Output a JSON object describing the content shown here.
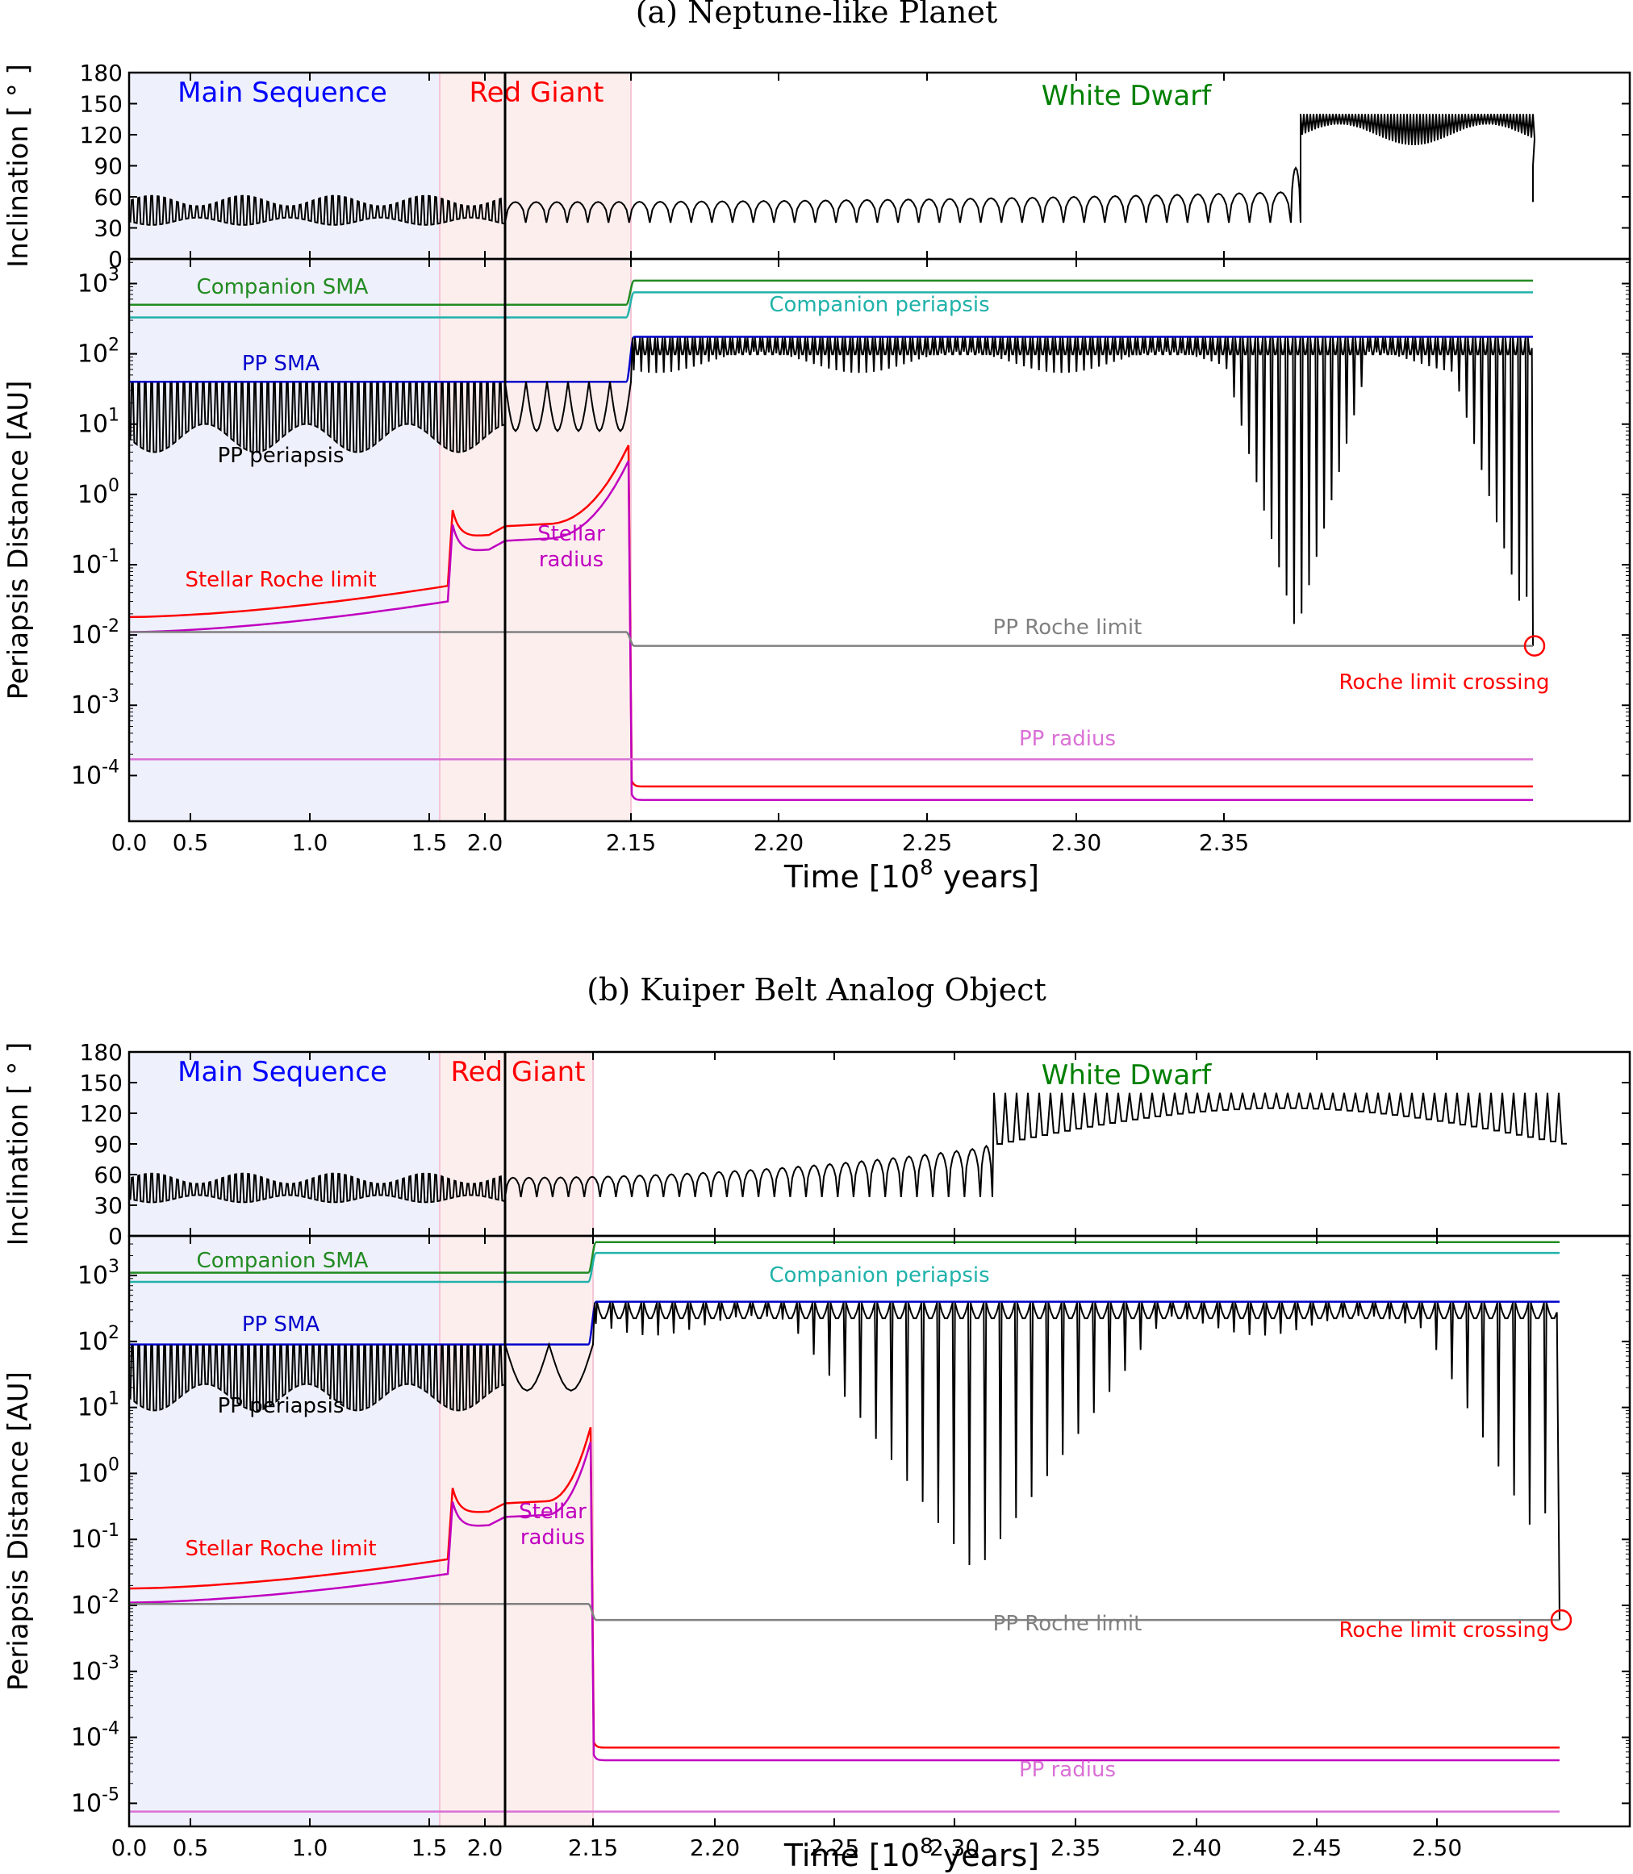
{
  "chart_data": [
    {
      "type": "line",
      "title": "(a) Neptune-like Planet",
      "xlabel_main": "Time [",
      "xlabel_base": "10",
      "xlabel_exp": "8",
      "xlabel_tail": "  years]",
      "x_ticks": [
        "0.0",
        "0.5",
        "1.0",
        "1.5",
        "2.0",
        "2.15",
        "2.20",
        "2.25",
        "2.30",
        "2.35"
      ],
      "phases": {
        "main_sequence": "Main Sequence",
        "red_giant": "Red Giant",
        "white_dwarf": "White Dwarf"
      },
      "colors": {
        "main_sequence": "#0000ff",
        "red_giant": "#ff0000",
        "white_dwarf": "#008000",
        "ms_shade": "#eef0fb",
        "rg_shade": "#fdeeee"
      },
      "inclination_panel": {
        "ylabel": "Inclination [ ° ]",
        "ylim": [
          0,
          180
        ],
        "y_ticks": [
          "0",
          "30",
          "60",
          "90",
          "120",
          "150",
          "180"
        ]
      },
      "distance_panel": {
        "ylabel": "Periapsis Distance [AU]",
        "yscale": "log",
        "ylim_log10": [
          -4.65,
          3.35
        ],
        "y_tick_exponents": [
          "3",
          "2",
          "1",
          "0",
          "-1",
          "-2",
          "-3",
          "-4"
        ]
      },
      "series_labels": [
        {
          "text": "Companion SMA",
          "color": "#228b22"
        },
        {
          "text": "Companion periapsis",
          "color": "#20b2aa"
        },
        {
          "text": "PP SMA",
          "color": "#0000cc"
        },
        {
          "text": "PP periapsis",
          "color": "#000000"
        },
        {
          "text": "Stellar Roche limit",
          "color": "#ff0000"
        },
        {
          "text": "Stellar radius",
          "color": "#c000c0"
        },
        {
          "text": "PP Roche limit",
          "color": "#808080"
        },
        {
          "text": "Roche limit crossing",
          "color": "#ff0000"
        },
        {
          "text": "PP radius",
          "color": "#da70d6"
        }
      ],
      "series_values": {
        "companion_sma_au": {
          "before": 500,
          "after": 1100
        },
        "companion_periapsis_au": {
          "before": 330,
          "after": 750
        },
        "pp_sma_au": {
          "before": 40,
          "after": 175
        },
        "pp_roche_limit_au": {
          "before": 0.011,
          "after": 0.007
        },
        "pp_radius_au": 0.00017,
        "stellar_roche_limit_au": {
          "main_sequence_start": 0.018,
          "main_sequence_end": 0.05,
          "rg_peak": 0.6,
          "rg_end": 5,
          "white_dwarf": 7e-05
        },
        "stellar_radius_au": {
          "main_sequence_start": 0.011,
          "main_sequence_end": 0.03,
          "rg_end": 3,
          "white_dwarf": 4.5e-05
        },
        "pp_periapsis_min_au": 0.02
      }
    },
    {
      "type": "line",
      "title": "(b) Kuiper Belt Analog Object",
      "xlabel_main": "Time [",
      "xlabel_base": "10",
      "xlabel_exp": "8",
      "xlabel_tail": "  years]",
      "x_ticks": [
        "0.0",
        "0.5",
        "1.0",
        "1.5",
        "2.0",
        "2.15",
        "2.20",
        "2.25",
        "2.30",
        "2.35",
        "2.40",
        "2.45",
        "2.50"
      ],
      "phases": {
        "main_sequence": "Main Sequence",
        "red_giant": "Red Giant",
        "white_dwarf": "White Dwarf"
      },
      "colors": {
        "main_sequence": "#0000ff",
        "red_giant": "#ff0000",
        "white_dwarf": "#008000",
        "ms_shade": "#eef0fb",
        "rg_shade": "#fdeeee"
      },
      "inclination_panel": {
        "ylabel": "Inclination [ ° ]",
        "ylim": [
          0,
          180
        ],
        "y_ticks": [
          "0",
          "30",
          "60",
          "90",
          "120",
          "150",
          "180"
        ]
      },
      "distance_panel": {
        "ylabel": "Periapsis Distance [AU]",
        "yscale": "log",
        "ylim_log10": [
          -5.35,
          3.6
        ],
        "y_tick_exponents": [
          "3",
          "2",
          "1",
          "0",
          "-1",
          "-2",
          "-3",
          "-4",
          "-5"
        ]
      },
      "series_labels": [
        {
          "text": "Companion SMA",
          "color": "#228b22"
        },
        {
          "text": "Companion periapsis",
          "color": "#20b2aa"
        },
        {
          "text": "PP SMA",
          "color": "#0000cc"
        },
        {
          "text": "PP periapsis",
          "color": "#000000"
        },
        {
          "text": "Stellar Roche limit",
          "color": "#ff0000"
        },
        {
          "text": "Stellar radius",
          "color": "#c000c0"
        },
        {
          "text": "PP Roche limit",
          "color": "#808080"
        },
        {
          "text": "Roche limit crossing",
          "color": "#ff0000"
        },
        {
          "text": "PP radius",
          "color": "#da70d6"
        }
      ],
      "series_values": {
        "companion_sma_au": {
          "before": 1100,
          "after": 3200
        },
        "companion_periapsis_au": {
          "before": 800,
          "after": 2200
        },
        "pp_sma_au": {
          "before": 90,
          "after": 400
        },
        "pp_roche_limit_au": {
          "before": 0.0105,
          "after": 0.006
        },
        "pp_radius_au": 7.5e-06,
        "stellar_roche_limit_au": {
          "main_sequence_start": 0.018,
          "main_sequence_end": 0.05,
          "rg_peak": 0.6,
          "rg_end": 5,
          "white_dwarf": 7e-05
        },
        "stellar_radius_au": {
          "main_sequence_start": 0.011,
          "main_sequence_end": 0.03,
          "rg_end": 3,
          "white_dwarf": 4.5e-05
        },
        "pp_periapsis_min_au": 0.06
      }
    }
  ]
}
